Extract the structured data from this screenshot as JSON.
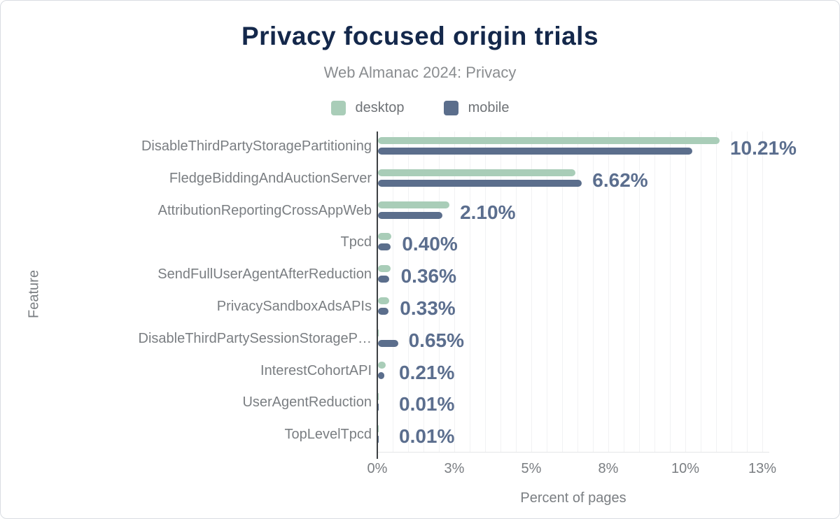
{
  "title": "Privacy focused origin trials",
  "subtitle": "Web Almanac 2024: Privacy",
  "legend": [
    {
      "label": "desktop",
      "color": "#a9cdb8"
    },
    {
      "label": "mobile",
      "color": "#5b6e8c"
    }
  ],
  "colors": {
    "title": "#14284b",
    "subtitle": "#8a8d90",
    "axis_text": "#7a7e82",
    "value_label": "#5b6e8e",
    "axis_line": "#3d4043",
    "gridline": "#f1f2f3",
    "desktop": "#a9cdb8",
    "mobile": "#5b6e8c"
  },
  "chart_data": {
    "type": "bar",
    "orientation": "horizontal",
    "title": "Privacy focused origin trials",
    "subtitle": "Web Almanac 2024: Privacy",
    "xlabel": "Percent of pages",
    "ylabel": "Feature",
    "xlim": [
      0,
      12.75
    ],
    "grid": "vertical-minor-0.5pct",
    "legend_position": "top",
    "categories": [
      "DisableThirdPartyStoragePartitioning",
      "FledgeBiddingAndAuctionServer",
      "AttributionReportingCrossAppWeb",
      "Tpcd",
      "SendFullUserAgentAfterReduction",
      "PrivacySandboxAdsAPIs",
      "DisableThirdPartySessionStorageP…",
      "InterestCohortAPI",
      "UserAgentReduction",
      "TopLevelTpcd"
    ],
    "series": [
      {
        "name": "desktop",
        "color": "#a9cdb8",
        "values": [
          11.09,
          6.41,
          2.32,
          0.44,
          0.4,
          0.37,
          0.01,
          0.24,
          0.01,
          0.01
        ]
      },
      {
        "name": "mobile",
        "color": "#5b6e8c",
        "values": [
          10.21,
          6.62,
          2.1,
          0.4,
          0.36,
          0.33,
          0.65,
          0.21,
          0.01,
          0.01
        ]
      }
    ],
    "data_labels": [
      "10.21%",
      "6.62%",
      "2.10%",
      "0.40%",
      "0.36%",
      "0.33%",
      "0.65%",
      "0.21%",
      "0.01%",
      "0.01%"
    ],
    "x_ticks": [
      {
        "value": 0,
        "label": "0%"
      },
      {
        "value": 2.5,
        "label": "3%"
      },
      {
        "value": 5,
        "label": "5%"
      },
      {
        "value": 7.5,
        "label": "8%"
      },
      {
        "value": 10,
        "label": "10%"
      },
      {
        "value": 12.5,
        "label": "13%"
      }
    ]
  }
}
